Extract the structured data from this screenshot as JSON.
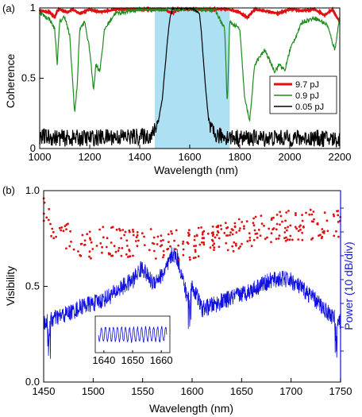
{
  "chart_data": [
    {
      "panel_label": "(a)",
      "type": "line",
      "xlabel": "Wavelength (nm)",
      "ylabel": "Coherence",
      "xlim": [
        1000,
        2200
      ],
      "ylim": [
        0,
        1.0
      ],
      "x_ticks": [
        "1000",
        "1200",
        "1400",
        "1600",
        "1800",
        "2000",
        "2200"
      ],
      "y_ticks": [
        "0",
        "0.5",
        "1"
      ],
      "shaded_band": [
        1460,
        1760
      ],
      "legend_position": "center-right",
      "series": [
        {
          "name": "9.7 pJ",
          "color": "#e01010",
          "x": [
            1000,
            1040,
            1060,
            1070,
            1080,
            1110,
            1130,
            1160,
            1200,
            1240,
            1300,
            1380,
            1500,
            1530,
            1550,
            1580,
            1650,
            1760,
            1800,
            1830,
            1860,
            1900,
            1950,
            2000,
            2050,
            2100,
            2140,
            2170,
            2200
          ],
          "y": [
            0.98,
            0.97,
            0.93,
            0.98,
            0.99,
            0.97,
            0.99,
            0.96,
            0.99,
            0.97,
            0.99,
            0.99,
            0.99,
            0.96,
            0.99,
            0.99,
            0.99,
            0.99,
            0.97,
            0.93,
            0.99,
            0.98,
            0.96,
            0.99,
            0.98,
            0.99,
            0.95,
            0.99,
            0.9
          ]
        },
        {
          "name": "0.9 pJ",
          "color": "#1e8c1e",
          "x": [
            1000,
            1020,
            1040,
            1060,
            1070,
            1080,
            1100,
            1120,
            1140,
            1150,
            1160,
            1180,
            1200,
            1215,
            1225,
            1240,
            1260,
            1300,
            1400,
            1460,
            1600,
            1700,
            1740,
            1750,
            1760,
            1800,
            1820,
            1840,
            1860,
            1900,
            1940,
            1960,
            1980,
            2000,
            2050,
            2100,
            2150,
            2180,
            2200
          ],
          "y": [
            0.97,
            0.94,
            0.92,
            0.85,
            0.6,
            0.9,
            0.94,
            0.8,
            0.25,
            0.45,
            0.85,
            0.9,
            0.7,
            0.42,
            0.6,
            0.55,
            0.85,
            0.96,
            0.99,
            0.99,
            0.99,
            0.99,
            0.85,
            0.3,
            0.9,
            0.85,
            0.35,
            0.2,
            0.6,
            0.7,
            0.55,
            0.6,
            0.55,
            0.7,
            0.9,
            0.93,
            0.88,
            0.7,
            0.94
          ]
        },
        {
          "name": "0.05 pJ",
          "color": "#000000",
          "x": [
            1000,
            1100,
            1200,
            1300,
            1400,
            1450,
            1470,
            1490,
            1500,
            1510,
            1520,
            1530,
            1540,
            1560,
            1600,
            1620,
            1640,
            1650,
            1660,
            1670,
            1680,
            1700,
            1800,
            1900,
            2000,
            2100,
            2200
          ],
          "y": [
            0.06,
            0.05,
            0.05,
            0.06,
            0.06,
            0.07,
            0.15,
            0.35,
            0.55,
            0.75,
            0.92,
            0.99,
            1.0,
            1.0,
            1.0,
            0.99,
            0.95,
            0.75,
            0.5,
            0.3,
            0.12,
            0.07,
            0.05,
            0.05,
            0.05,
            0.05,
            0.04
          ]
        }
      ]
    },
    {
      "panel_label": "(b)",
      "type": "scatter",
      "xlabel": "Wavelength (nm)",
      "ylabel": "Visibility",
      "y2label": "Power (10 dB/div)",
      "xlim": [
        1450,
        1750
      ],
      "ylim": [
        0,
        1.0
      ],
      "x_ticks": [
        "1450",
        "1500",
        "1550",
        "1600",
        "1650",
        "1700",
        "1750"
      ],
      "y_ticks": [
        "0.0",
        "0.5",
        "1.0"
      ],
      "series": [
        {
          "name": "Visibility",
          "color": "#e01010",
          "x": [
            1450,
            1455,
            1460,
            1465,
            1470,
            1475,
            1480,
            1490,
            1500,
            1510,
            1520,
            1530,
            1540,
            1550,
            1560,
            1570,
            1580,
            1590,
            1600,
            1610,
            1620,
            1630,
            1640,
            1650,
            1660,
            1670,
            1680,
            1690,
            1700,
            1710,
            1720,
            1730,
            1740,
            1750
          ],
          "y": [
            0.9,
            0.85,
            0.8,
            0.78,
            0.76,
            0.75,
            0.74,
            0.73,
            0.72,
            0.74,
            0.73,
            0.72,
            0.73,
            0.72,
            0.72,
            0.73,
            0.72,
            0.71,
            0.72,
            0.73,
            0.74,
            0.75,
            0.76,
            0.78,
            0.79,
            0.8,
            0.81,
            0.81,
            0.82,
            0.82,
            0.82,
            0.83,
            0.83,
            0.83
          ]
        },
        {
          "name": "Power",
          "color": "#1010e0",
          "type": "line",
          "x": [
            1450,
            1460,
            1470,
            1480,
            1490,
            1500,
            1510,
            1520,
            1530,
            1540,
            1545,
            1550,
            1555,
            1560,
            1565,
            1570,
            1575,
            1580,
            1585,
            1590,
            1595,
            1600,
            1605,
            1610,
            1620,
            1630,
            1640,
            1650,
            1660,
            1670,
            1680,
            1690,
            1700,
            1710,
            1720,
            1730,
            1740,
            1750
          ],
          "y": [
            0.31,
            0.33,
            0.35,
            0.37,
            0.4,
            0.41,
            0.43,
            0.46,
            0.5,
            0.53,
            0.57,
            0.6,
            0.55,
            0.52,
            0.54,
            0.56,
            0.6,
            0.67,
            0.65,
            0.55,
            0.44,
            0.5,
            0.45,
            0.38,
            0.4,
            0.42,
            0.44,
            0.46,
            0.48,
            0.51,
            0.53,
            0.54,
            0.53,
            0.49,
            0.45,
            0.4,
            0.35,
            0.31
          ]
        }
      ],
      "inset": {
        "xlim": [
          1637,
          1663
        ],
        "x_ticks": [
          "1640",
          "1650",
          "1660"
        ]
      }
    }
  ]
}
